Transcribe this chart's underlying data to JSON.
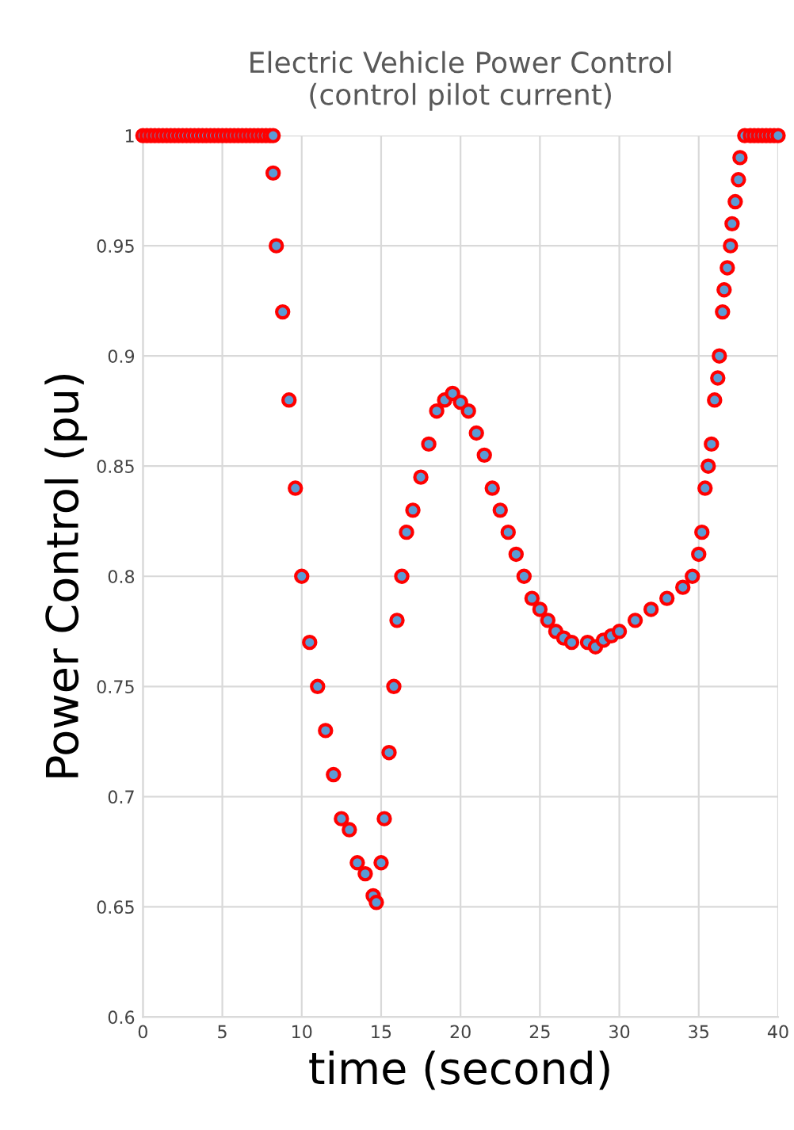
{
  "chart_data": {
    "type": "scatter",
    "title": "Electric Vehicle Power Control\n(control pilot current)",
    "xlabel": "time (second)",
    "ylabel": "Power Control (pu)",
    "x": [
      0,
      0.25,
      0.5,
      0.75,
      1,
      1.25,
      1.5,
      1.75,
      2,
      2.25,
      2.5,
      2.75,
      3,
      3.25,
      3.5,
      3.75,
      4,
      4.25,
      4.5,
      4.75,
      5,
      5.25,
      5.5,
      5.75,
      6,
      6.25,
      6.5,
      6.75,
      7,
      7.25,
      7.5,
      7.75,
      8,
      8.2,
      8.2,
      8.4,
      8.8,
      9.2,
      9.6,
      10,
      10.5,
      11,
      11.5,
      12,
      12.5,
      13,
      13.5,
      14,
      14.5,
      14.7,
      15,
      15.2,
      15.5,
      15.8,
      16,
      16.3,
      16.6,
      17,
      17.5,
      18,
      18.5,
      19,
      19.5,
      20,
      20.5,
      21,
      21.5,
      22,
      22.5,
      23,
      23.5,
      24,
      24.5,
      25,
      25.5,
      26,
      26.5,
      27,
      28,
      28.5,
      29,
      29.5,
      30,
      31,
      32,
      33,
      34,
      34.6,
      35,
      35.2,
      35.4,
      35.6,
      35.8,
      36,
      36.2,
      36.3,
      36.5,
      36.6,
      36.8,
      37,
      37.1,
      37.3,
      37.5,
      37.6,
      37.9,
      38.25,
      38.5,
      38.75,
      39,
      39.25,
      39.5,
      39.75,
      40
    ],
    "series": [
      {
        "color": "#ff0000",
        "values": [
          1,
          1,
          1,
          1,
          1,
          1,
          1,
          1,
          1,
          1,
          1,
          1,
          1,
          1,
          1,
          1,
          1,
          1,
          1,
          1,
          1,
          1,
          1,
          1,
          1,
          1,
          1,
          1,
          1,
          1,
          1,
          1,
          1,
          1,
          0.983,
          0.95,
          0.92,
          0.88,
          0.84,
          0.8,
          0.77,
          0.75,
          0.73,
          0.71,
          0.69,
          0.685,
          0.67,
          0.665,
          0.655,
          0.652,
          0.67,
          0.69,
          0.72,
          0.75,
          0.78,
          0.8,
          0.82,
          0.83,
          0.845,
          0.86,
          0.875,
          0.88,
          0.883,
          0.879,
          0.875,
          0.865,
          0.855,
          0.84,
          0.83,
          0.82,
          0.81,
          0.8,
          0.79,
          0.785,
          0.78,
          0.775,
          0.772,
          0.77,
          0.77,
          0.768,
          0.771,
          0.773,
          0.775,
          0.78,
          0.785,
          0.79,
          0.795,
          0.8,
          0.81,
          0.82,
          0.84,
          0.85,
          0.86,
          0.88,
          0.89,
          0.9,
          0.92,
          0.93,
          0.94,
          0.95,
          0.96,
          0.97,
          0.98,
          0.99,
          1,
          1,
          1,
          1,
          1,
          1,
          1,
          1,
          1
        ]
      }
    ],
    "xlim": [
      0,
      40
    ],
    "xticks": [
      0,
      5,
      10,
      15,
      20,
      25,
      30,
      35,
      40
    ],
    "ylim": [
      0.6,
      1
    ],
    "yticks": [
      0.6,
      0.65,
      0.7,
      0.75,
      0.8,
      0.85,
      0.9,
      0.95,
      1
    ],
    "grid": true,
    "marker": "circle"
  }
}
